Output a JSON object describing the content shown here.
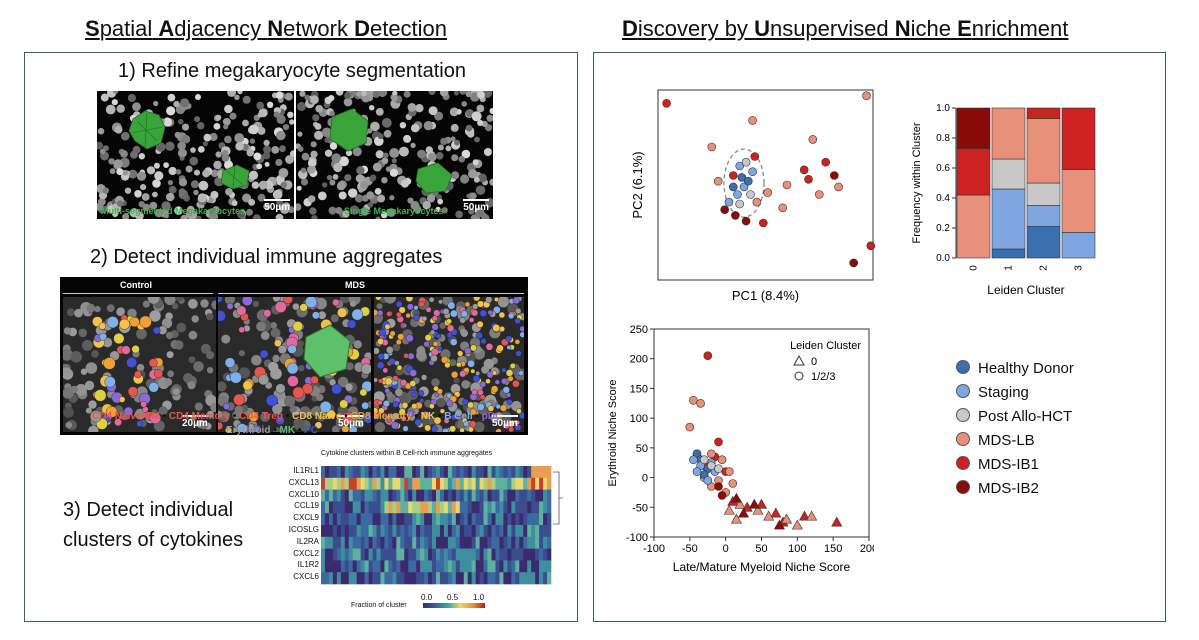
{
  "left": {
    "title_words": [
      {
        "first": "S",
        "rest": "patial"
      },
      {
        "first": "A",
        "rest": "djacency"
      },
      {
        "first": "N",
        "rest": "etwork"
      },
      {
        "first": "D",
        "rest": "etection"
      }
    ],
    "step1": "1) Refine megakaryocyte segmentation",
    "step1_captions": [
      "Multi-segmented Megakaryocytes",
      "Single Megakaryocytes"
    ],
    "step1_scale": [
      "50µm",
      "50µm"
    ],
    "step2": "2) Detect individual immune aggregates",
    "step2_headers": [
      "Control",
      "MDS"
    ],
    "step2_scale": [
      "20µm",
      "50µm",
      "50µm"
    ],
    "cell_legend_line1": [
      {
        "label": "CD4 Naive/CM",
        "color": "#e8554e"
      },
      {
        "label": "CD4 Memory",
        "color": "#e8554e"
      },
      {
        "label": "CD4 Treg",
        "color": "#e8554e"
      },
      {
        "label": "CD8 Naive",
        "color": "#f4c24a"
      },
      {
        "label": "CD8 Memory",
        "color": "#f0a030"
      },
      {
        "label": "NK",
        "color": "#e0d040"
      },
      {
        "label": "B Cell",
        "color": "#7fb0ea"
      },
      {
        "label": "pDC",
        "color": "#8a6ad8"
      }
    ],
    "cell_legend_line2": [
      {
        "label": "Erythroid",
        "color": "#9a9a9a"
      },
      {
        "label": "MK",
        "color": "#5dc06a"
      },
      {
        "label": "PC",
        "color": "#4050d8"
      }
    ],
    "step3_line1": "3) Detect individual",
    "step3_line2": "clusters of cytokines",
    "heatmap_title": "Cytokine clusters within B Cell-rich immune aggregates",
    "heatmap_rows": [
      "IL1RL1",
      "CXCL13",
      "CXCL10",
      "CCL19",
      "CXCL9",
      "ICOSLG",
      "IL2RA",
      "CXCL2",
      "IL1R2",
      "CXCL6"
    ],
    "heatmap_colorbar_label": "Fraction of cluster",
    "heatmap_colorbar_ticks": [
      "0.0",
      "0.5",
      "1.0"
    ]
  },
  "right": {
    "title_words": [
      {
        "first": "D",
        "rest": "iscovery by"
      },
      {
        "first": "U",
        "rest": "nsupervised"
      },
      {
        "first": "N",
        "rest": "iche"
      },
      {
        "first": "E",
        "rest": "nrichment"
      }
    ],
    "legend": [
      {
        "label": "Healthy Donor",
        "color": "#3a6fb0"
      },
      {
        "label": "Staging",
        "color": "#7ea6e0"
      },
      {
        "label": "Post Allo-HCT",
        "color": "#c8c8c8"
      },
      {
        "label": "MDS-LB",
        "color": "#e8907a"
      },
      {
        "label": "MDS-IB1",
        "color": "#cc2222"
      },
      {
        "label": "MDS-IB2",
        "color": "#8b0a0a"
      }
    ]
  },
  "chart_data": [
    {
      "type": "scatter",
      "xlabel": "PC1 (8.4%)",
      "ylabel": "PC2 (6.1%)",
      "grid": false,
      "note_visible": "dashed ellipse around a cluster of Healthy/Staging points",
      "series": [
        {
          "name": "MDS-IB1",
          "points": [
            [
              0.04,
              0.93
            ],
            [
              0.7,
              0.53
            ],
            [
              0.99,
              0.18
            ],
            [
              0.68,
              0.58
            ],
            [
              0.35,
              0.55
            ],
            [
              0.45,
              0.65
            ],
            [
              0.78,
              0.62
            ],
            [
              0.49,
              0.3
            ]
          ]
        },
        {
          "name": "MDS-LB",
          "points": [
            [
              0.97,
              0.97
            ],
            [
              0.44,
              0.84
            ],
            [
              0.72,
              0.74
            ],
            [
              0.25,
              0.7
            ],
            [
              0.51,
              0.46
            ],
            [
              0.6,
              0.5
            ],
            [
              0.75,
              0.45
            ],
            [
              0.58,
              0.38
            ],
            [
              0.84,
              0.49
            ],
            [
              0.28,
              0.52
            ],
            [
              0.46,
              0.41
            ]
          ]
        },
        {
          "name": "MDS-IB2",
          "points": [
            [
              0.82,
              0.55
            ],
            [
              0.91,
              0.09
            ],
            [
              0.36,
              0.34
            ],
            [
              0.41,
              0.31
            ],
            [
              0.31,
              0.37
            ]
          ]
        },
        {
          "name": "Staging",
          "points": [
            [
              0.38,
              0.6
            ],
            [
              0.4,
              0.49
            ],
            [
              0.37,
              0.45
            ],
            [
              0.33,
              0.41
            ],
            [
              0.44,
              0.57
            ]
          ]
        },
        {
          "name": "Healthy Donor",
          "points": [
            [
              0.39,
              0.54
            ],
            [
              0.42,
              0.52
            ],
            [
              0.35,
              0.49
            ]
          ]
        },
        {
          "name": "Post Allo-HCT",
          "points": [
            [
              0.43,
              0.45
            ],
            [
              0.38,
              0.4
            ],
            [
              0.41,
              0.62
            ]
          ]
        }
      ]
    },
    {
      "type": "bar",
      "stacked": true,
      "categories": [
        "0",
        "1",
        "2",
        "3"
      ],
      "xlabel": "Leiden Cluster",
      "ylabel": "Frequency within Cluster",
      "ylim": [
        0,
        1.0
      ],
      "yticks": [
        0.0,
        0.2,
        0.4,
        0.6,
        0.8,
        1.0
      ],
      "series": [
        {
          "name": "Healthy Donor",
          "values": [
            0.0,
            0.06,
            0.21,
            0.0
          ]
        },
        {
          "name": "Staging",
          "values": [
            0.0,
            0.4,
            0.14,
            0.17
          ]
        },
        {
          "name": "Post Allo-HCT",
          "values": [
            0.0,
            0.2,
            0.15,
            0.0
          ]
        },
        {
          "name": "MDS-LB",
          "values": [
            0.42,
            0.34,
            0.43,
            0.42
          ]
        },
        {
          "name": "MDS-IB1",
          "values": [
            0.31,
            0.0,
            0.07,
            0.41
          ]
        },
        {
          "name": "MDS-IB2",
          "values": [
            0.27,
            0.0,
            0.0,
            0.0
          ]
        }
      ]
    },
    {
      "type": "scatter",
      "xlabel": "Late/Mature Myeloid Niche Score",
      "ylabel": "Erythroid Niche Score",
      "xlim": [
        -100,
        200
      ],
      "ylim": [
        -100,
        250
      ],
      "xticks": [
        -100,
        -50,
        0,
        50,
        100,
        150,
        200
      ],
      "yticks": [
        -100,
        -50,
        0,
        50,
        100,
        150,
        200,
        250
      ],
      "legend_title": "Leiden Cluster",
      "legend_markers": [
        {
          "marker": "triangle",
          "label": "0"
        },
        {
          "marker": "circle",
          "label": "1/2/3"
        }
      ],
      "series": [
        {
          "name": "MDS-IB1",
          "marker": "circle",
          "points": [
            [
              -25,
              205
            ],
            [
              -10,
              60
            ],
            [
              -40,
              40
            ],
            [
              -30,
              20
            ],
            [
              0,
              10
            ],
            [
              -15,
              35
            ]
          ]
        },
        {
          "name": "MDS-LB",
          "marker": "circle",
          "points": [
            [
              -45,
              130
            ],
            [
              -35,
              125
            ],
            [
              -50,
              85
            ],
            [
              -20,
              40
            ],
            [
              -5,
              30
            ],
            [
              5,
              10
            ],
            [
              -10,
              -5
            ],
            [
              -30,
              0
            ],
            [
              -20,
              -15
            ],
            [
              0,
              -25
            ],
            [
              10,
              -10
            ]
          ]
        },
        {
          "name": "Healthy Donor",
          "marker": "circle",
          "points": [
            [
              -40,
              40
            ],
            [
              -35,
              30
            ],
            [
              -25,
              15
            ],
            [
              -30,
              5
            ]
          ]
        },
        {
          "name": "Staging",
          "marker": "circle",
          "points": [
            [
              -45,
              30
            ],
            [
              -35,
              20
            ],
            [
              -20,
              25
            ],
            [
              -40,
              10
            ],
            [
              -25,
              -5
            ],
            [
              -15,
              10
            ]
          ]
        },
        {
          "name": "Post Allo-HCT",
          "marker": "circle",
          "points": [
            [
              -30,
              30
            ],
            [
              -20,
              20
            ],
            [
              -10,
              15
            ]
          ]
        },
        {
          "name": "MDS-IB2",
          "marker": "circle",
          "points": [
            [
              -10,
              -15
            ],
            [
              -5,
              -30
            ]
          ]
        },
        {
          "name": "MDS-IB1",
          "marker": "triangle",
          "points": [
            [
              10,
              -40
            ],
            [
              30,
              -50
            ],
            [
              50,
              -45
            ],
            [
              70,
              -60
            ],
            [
              110,
              -65
            ],
            [
              155,
              -75
            ],
            [
              80,
              -75
            ]
          ]
        },
        {
          "name": "MDS-LB",
          "marker": "triangle",
          "points": [
            [
              5,
              -55
            ],
            [
              20,
              -45
            ],
            [
              45,
              -55
            ],
            [
              60,
              -65
            ],
            [
              85,
              -70
            ],
            [
              100,
              -80
            ],
            [
              120,
              -65
            ],
            [
              15,
              -70
            ]
          ]
        },
        {
          "name": "MDS-IB2",
          "marker": "triangle",
          "points": [
            [
              15,
              -35
            ],
            [
              40,
              -45
            ],
            [
              75,
              -80
            ],
            [
              25,
              -60
            ]
          ]
        }
      ]
    }
  ]
}
